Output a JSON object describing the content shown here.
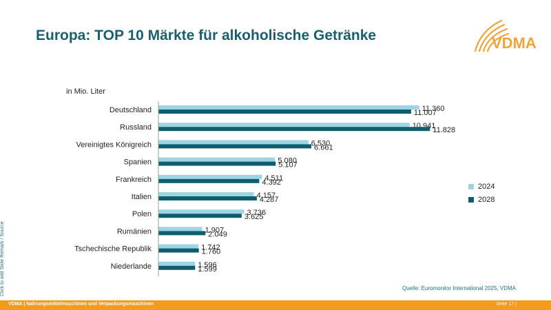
{
  "title": "Europa: TOP 10 Märkte für alkoholische Getränke",
  "logo_text": "VDMA",
  "side_note": "Click to add Slide Remark / Source",
  "source": "Quelle: Euromonitor International 2025, VDMA",
  "footer": {
    "left": "VDMA | Nahrungsmittelmaschinen und Verpackungsmaschinen",
    "right": "Seite 17 |"
  },
  "colors": {
    "series_2024": "#9ed3e4",
    "series_2028": "#0f5e70",
    "title": "#1b5f6e",
    "footer": "#f49a1c",
    "logo": "#f1a33a"
  },
  "chart_data": {
    "type": "bar",
    "orientation": "horizontal",
    "unit_label": "in Mio. Liter",
    "categories": [
      "Deutschland",
      "Russland",
      "Vereinigtes Königreich",
      "Spanien",
      "Frankreich",
      "Italien",
      "Polen",
      "Rumänien",
      "Tschechische Republik",
      "Niederlande"
    ],
    "series": [
      {
        "name": "2024",
        "values": [
          11360,
          10941,
          6530,
          5080,
          4511,
          4157,
          3736,
          1907,
          1742,
          1596
        ],
        "labels": [
          "11.360",
          "10.941",
          "6.530",
          "5.080",
          "4.511",
          "4.157",
          "3.736",
          "1.907",
          "1.742",
          "1.596"
        ]
      },
      {
        "name": "2028",
        "values": [
          11007,
          11828,
          6661,
          5107,
          4392,
          4287,
          3625,
          2049,
          1760,
          1599
        ],
        "labels": [
          "11.007",
          "11.828",
          "6.661",
          "5.107",
          "4.392",
          "4.287",
          "3.625",
          "2.049",
          "1.760",
          "1.599"
        ]
      }
    ],
    "xlim": [
      0,
      12000
    ],
    "legend_position": "right",
    "grid": false
  }
}
